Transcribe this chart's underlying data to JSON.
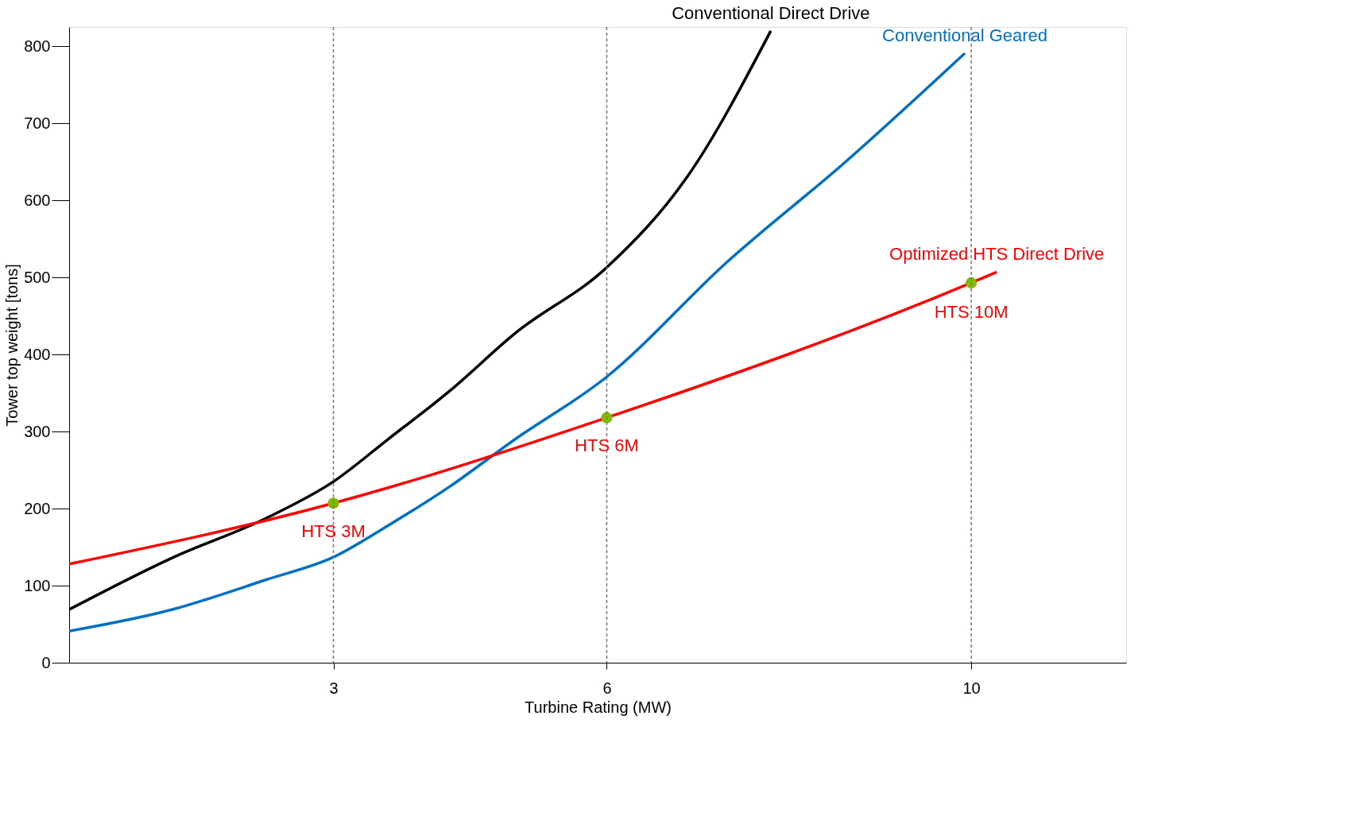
{
  "chart_data": {
    "type": "line",
    "xlabel": "Turbine Rating (MW)",
    "ylabel": "Tower top weight  [tons]",
    "xlim": [
      0.1,
      11.7
    ],
    "ylim": [
      0,
      825
    ],
    "xticks": [
      3,
      6,
      10
    ],
    "yticks": [
      0,
      100,
      200,
      300,
      400,
      500,
      600,
      700,
      800
    ],
    "grid": false,
    "marker": "none",
    "line_style": "solid",
    "series": [
      {
        "name": "Conventional Direct Drive",
        "color": "#000000",
        "x": [
          0.1,
          1.23,
          2.27,
          3,
          3.6,
          4.27,
          5,
          6,
          6.88,
          7.8
        ],
        "values": [
          69,
          136,
          188,
          235,
          290,
          352,
          428,
          513,
          630,
          820
        ]
      },
      {
        "name": "Conventional Geared",
        "color": "#0070c0",
        "x": [
          0.1,
          1.2,
          2.27,
          3,
          3.6,
          4.27,
          4.97,
          6,
          7.32,
          8.62,
          9.93
        ],
        "values": [
          41,
          68,
          108,
          137,
          178,
          228,
          288,
          371,
          520,
          650,
          791
        ]
      },
      {
        "name": "Optimized HTS Direct Drive",
        "color": "#ff0000",
        "x": [
          0.1,
          3,
          6,
          10,
          10.28
        ],
        "values": [
          128,
          207,
          318,
          493,
          507
        ]
      },
      {
        "type": "scatter",
        "marker": "circle",
        "color": "#7fba00",
        "x": [
          3,
          6,
          10
        ],
        "values": [
          207,
          318,
          493
        ]
      }
    ],
    "ref_lines": [
      {
        "axis": "x",
        "value": 3,
        "color": "#777777",
        "line_style": "dashed"
      },
      {
        "axis": "x",
        "value": 6,
        "color": "#777777",
        "line_style": "dashed"
      },
      {
        "axis": "x",
        "value": 10,
        "color": "#777777",
        "line_style": "dashed"
      }
    ],
    "annotations": [
      {
        "text": "HTS 3M",
        "x": 3,
        "y": 170
      },
      {
        "text": "HTS 6M",
        "x": 6,
        "y": 282
      },
      {
        "text": "HTS 10M",
        "x": 10,
        "y": 455
      }
    ]
  }
}
